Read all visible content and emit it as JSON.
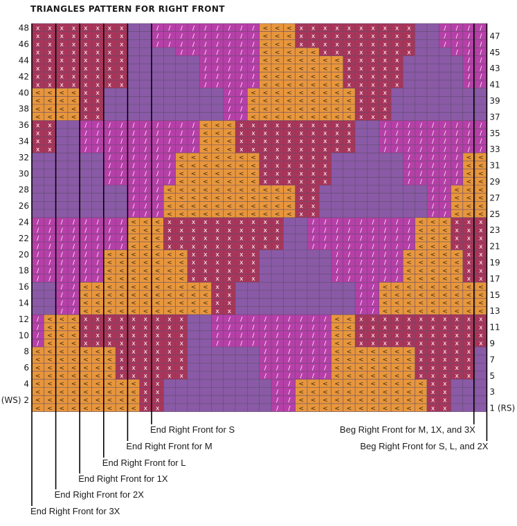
{
  "title": "TRIANGLES PATTERN FOR RIGHT FRONT",
  "colors": {
    "orange": "#e8963c",
    "purple": "#8a5aa6",
    "magenta": "#b63fa8",
    "red": "#a8355a",
    "gridline": "#5e4a6a"
  },
  "legend_symbols": {
    "orange": "<",
    "magenta": "/",
    "red": "x",
    "purple": ""
  },
  "row_labels_left": [
    "48",
    "46",
    "44",
    "42",
    "40",
    "38",
    "36",
    "34",
    "32",
    "30",
    "28",
    "26",
    "24",
    "22",
    "20",
    "18",
    "16",
    "14",
    "12",
    "10",
    "8",
    "6",
    "4",
    "(WS) 2"
  ],
  "row_labels_right": [
    "47",
    "45",
    "43",
    "41",
    "39",
    "37",
    "35",
    "33",
    "31",
    "29",
    "27",
    "25",
    "23",
    "21",
    "19",
    "17",
    "15",
    "13",
    "11",
    "9",
    "7",
    "5",
    "3",
    "1 (RS)"
  ],
  "leaders": [
    {
      "label": "End Right Front for S",
      "side": "left"
    },
    {
      "label": "End Right Front for M",
      "side": "left"
    },
    {
      "label": "End Right Front for L",
      "side": "left"
    },
    {
      "label": "End Right Front for 1X",
      "side": "left"
    },
    {
      "label": "End Right Front for 2X",
      "side": "left"
    },
    {
      "label": "End Right Front for 3X",
      "side": "left"
    },
    {
      "label": "Beg Right Front for M, 1X, and 3X",
      "side": "right"
    },
    {
      "label": "Beg Right Front for S, L, and 2X",
      "side": "right"
    }
  ],
  "chart_data": {
    "type": "knitting-chart",
    "columns": 38,
    "rows": 48,
    "row_numbering": "rows 1-48 from bottom; odd rows RS on right, even rows WS on left"
  }
}
